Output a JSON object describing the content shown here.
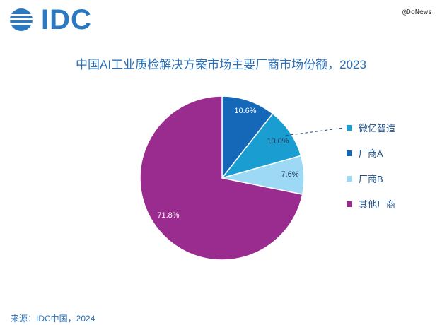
{
  "logo_text": "IDC",
  "watermark": "@DoNews",
  "source": "来源：IDC中国，2024",
  "chart_data": {
    "type": "pie",
    "title": "中国AI工业质检解决方案市场主要厂商市场份额，2023",
    "categories": [
      "厂商A",
      "微亿智造",
      "厂商B",
      "其他厂商"
    ],
    "values": [
      10.6,
      10.0,
      7.6,
      71.8
    ],
    "labels": [
      "10.6%",
      "10.0%",
      "7.6%",
      "71.8%"
    ],
    "colors": [
      "#1567b8",
      "#1a9dd0",
      "#9dd8f5",
      "#9b2c8f"
    ],
    "legend": {
      "placement": "right",
      "entries": [
        "微亿智造",
        "厂商A",
        "厂商B",
        "其他厂商"
      ],
      "colors": [
        "#1a9dd0",
        "#1567b8",
        "#9dd8f5",
        "#9b2c8f"
      ]
    }
  }
}
